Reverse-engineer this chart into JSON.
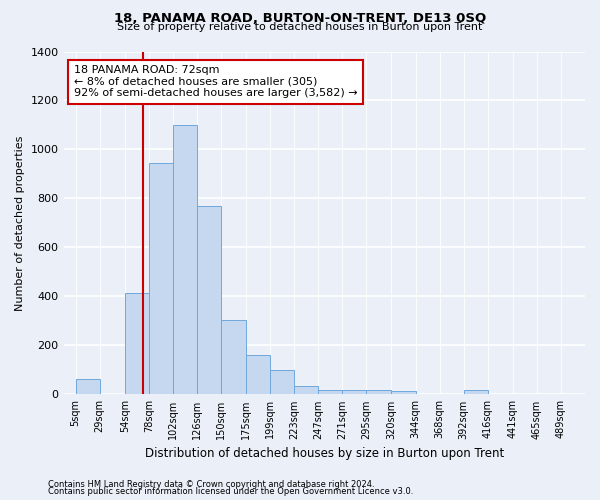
{
  "title": "18, PANAMA ROAD, BURTON-ON-TRENT, DE13 0SQ",
  "subtitle": "Size of property relative to detached houses in Burton upon Trent",
  "xlabel": "Distribution of detached houses by size in Burton upon Trent",
  "ylabel": "Number of detached properties",
  "footnote1": "Contains HM Land Registry data © Crown copyright and database right 2024.",
  "footnote2": "Contains public sector information licensed under the Open Government Licence v3.0.",
  "annotation_title": "18 PANAMA ROAD: 72sqm",
  "annotation_line1": "← 8% of detached houses are smaller (305)",
  "annotation_line2": "92% of semi-detached houses are larger (3,582) →",
  "bar_color": "#c5d8f0",
  "bar_edge_color": "#6fa8dc",
  "vline_color": "#cc0000",
  "categories": [
    "5sqm",
    "29sqm",
    "54sqm",
    "78sqm",
    "102sqm",
    "126sqm",
    "150sqm",
    "175sqm",
    "199sqm",
    "223sqm",
    "247sqm",
    "271sqm",
    "295sqm",
    "320sqm",
    "344sqm",
    "368sqm",
    "392sqm",
    "416sqm",
    "441sqm",
    "465sqm",
    "489sqm"
  ],
  "bin_edges": [
    5,
    29,
    54,
    78,
    102,
    126,
    150,
    175,
    199,
    223,
    247,
    271,
    295,
    320,
    344,
    368,
    392,
    416,
    441,
    465,
    489,
    513
  ],
  "values": [
    65,
    0,
    415,
    945,
    1100,
    770,
    305,
    160,
    100,
    35,
    18,
    18,
    18,
    12,
    0,
    0,
    18,
    0,
    0,
    0,
    0
  ],
  "ylim": [
    0,
    1400
  ],
  "yticks": [
    0,
    200,
    400,
    600,
    800,
    1000,
    1200,
    1400
  ],
  "vline_x": 72,
  "bg_color": "#eaeff8",
  "plot_bg_color": "#eaeff8",
  "grid_color": "#ffffff"
}
